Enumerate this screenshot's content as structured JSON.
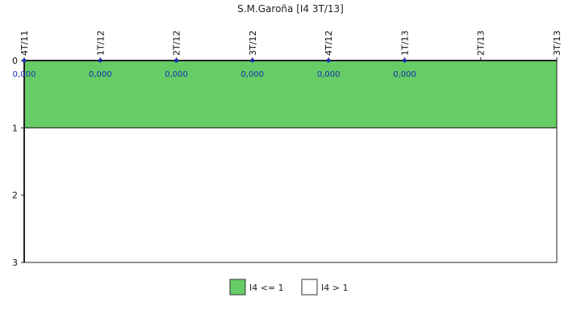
{
  "chart_data": {
    "type": "line",
    "title": "S.M.Garoña [I4 3T/13]",
    "xlabel": "",
    "ylabel": "",
    "categories": [
      "4T/11",
      "1T/12",
      "2T/12",
      "3T/12",
      "4T/12",
      "1T/13",
      "2T/13",
      "3T/13"
    ],
    "yticks": [
      0,
      1,
      2,
      3
    ],
    "ylim": [
      0,
      3
    ],
    "y_axis_inverted": true,
    "grid": false,
    "series": [
      {
        "values": [
          0,
          0,
          0,
          0,
          0,
          0,
          null,
          null
        ],
        "data_labels": [
          "0,000",
          "0,000",
          "0,000",
          "0,000",
          "0,000",
          "0,000",
          null,
          null
        ],
        "color": "#1a2fb0"
      }
    ],
    "bands": [
      {
        "name": "I4 <= 1",
        "from": 0,
        "to": 1,
        "color": "#66cc66"
      },
      {
        "name": "I4 > 1",
        "from": 1,
        "to": 3,
        "color": "#ffffff"
      }
    ],
    "legend_position": "bottom-center"
  }
}
